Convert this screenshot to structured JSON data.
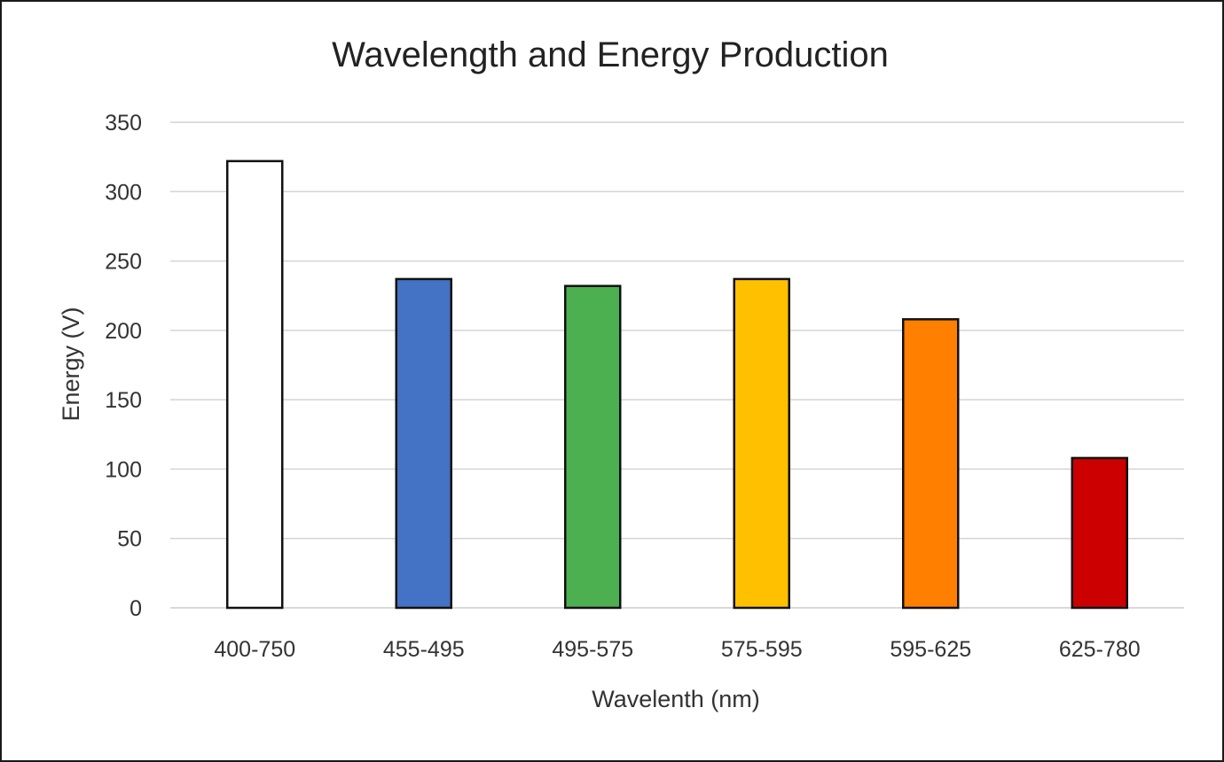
{
  "chart_data": {
    "type": "bar",
    "title": "Wavelength and Energy Production",
    "xlabel": "Wavelenth (nm)",
    "ylabel": "Energy (V)",
    "categories": [
      "400-750",
      "455-495",
      "495-575",
      "575-595",
      "595-625",
      "625-780"
    ],
    "values": [
      322,
      237,
      232,
      237,
      208,
      108
    ],
    "colors": [
      "#ffffff",
      "#4472c4",
      "#4caf50",
      "#ffc000",
      "#ff7f00",
      "#cc0000"
    ],
    "ylim": [
      0,
      350
    ],
    "yticks": [
      0,
      50,
      100,
      150,
      200,
      250,
      300,
      350
    ],
    "grid": true,
    "legend": "none"
  }
}
